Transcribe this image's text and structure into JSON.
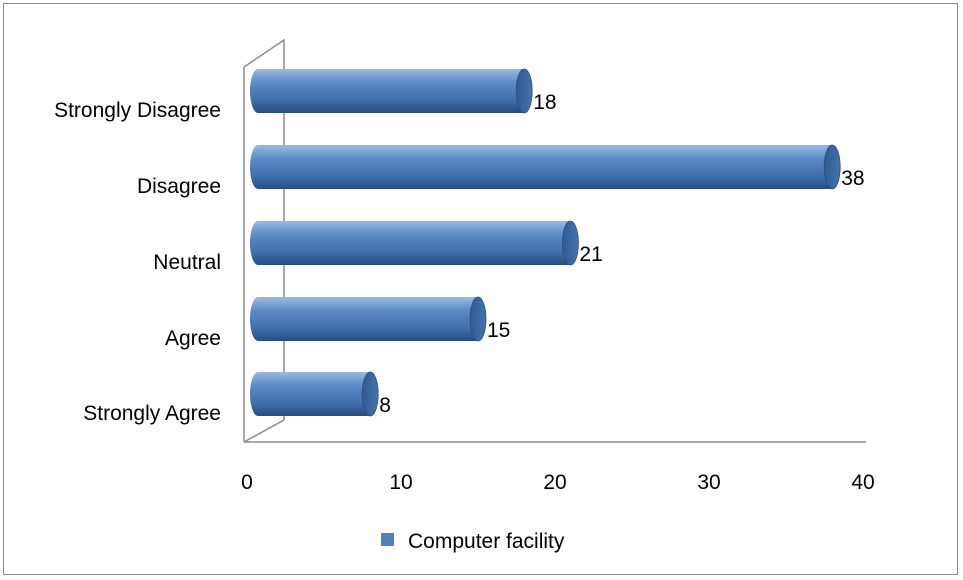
{
  "chart_data": {
    "type": "bar",
    "orientation": "horizontal",
    "style": "3d-cylinder",
    "categories": [
      "Strongly Disagree",
      "Disagree",
      "Neutral",
      "Agree",
      "Strongly Agree"
    ],
    "series": [
      {
        "name": "Computer facility",
        "values": [
          18,
          38,
          21,
          15,
          8
        ],
        "color": "#4f81bd"
      }
    ],
    "data_labels": [
      "18",
      "38",
      "21",
      "15",
      "8"
    ],
    "xlim": [
      0,
      40
    ],
    "xticks": [
      "0",
      "10",
      "20",
      "30",
      "40"
    ],
    "grid": false,
    "legend_position": "bottom"
  }
}
